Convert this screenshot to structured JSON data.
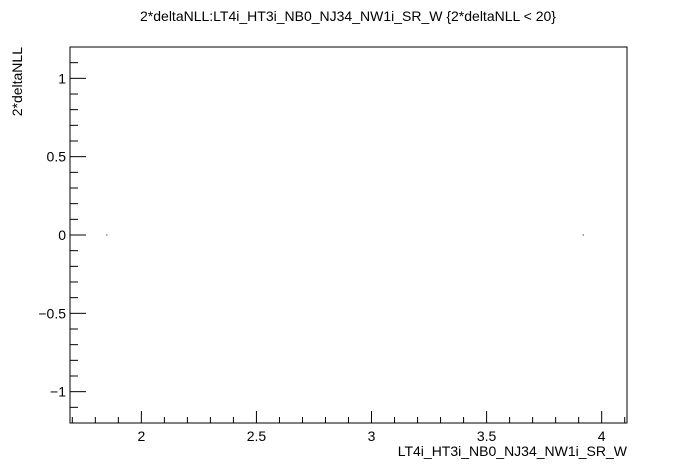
{
  "chart_data": {
    "type": "scatter",
    "title": "2*deltaNLL:LT4i_HT3i_NB0_NJ34_NW1i_SR_W {2*deltaNLL < 20}",
    "xlabel": "LT4i_HT3i_NB0_NJ34_NW1i_SR_W",
    "ylabel": "2*deltaNLL",
    "xlim": [
      1.69,
      4.11
    ],
    "ylim": [
      -1.2,
      1.2
    ],
    "x_ticks": [
      2,
      2.5,
      3,
      3.5,
      4
    ],
    "x_tick_labels": [
      "2",
      "2.5",
      "3",
      "3.5",
      "4"
    ],
    "y_ticks": [
      -1,
      -0.5,
      0,
      0.5,
      1
    ],
    "y_tick_labels": [
      "−1",
      "−0.5",
      "0",
      "0.5",
      "1"
    ],
    "grid": false,
    "legend": "none",
    "points": [
      {
        "x": 1.85,
        "y": 0
      },
      {
        "x": 3.92,
        "y": 0
      }
    ],
    "colors": {
      "marker": "#000000",
      "axis": "#000000",
      "background": "#ffffff"
    }
  }
}
